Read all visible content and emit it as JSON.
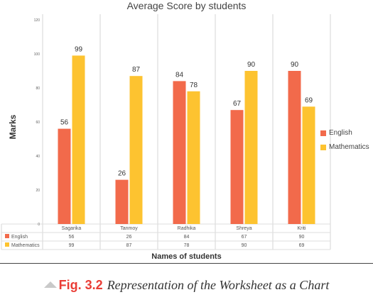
{
  "colors": {
    "english": "#f26a4b",
    "mathematics": "#fdc330",
    "grid": "#d5d5d5",
    "table_line": "#dddddd",
    "text": "#333333"
  },
  "table": {
    "rows": [
      {
        "label": "English",
        "values": [
          "56",
          "26",
          "84",
          "67",
          "90"
        ]
      },
      {
        "label": "Mathematics",
        "values": [
          "99",
          "87",
          "78",
          "90",
          "69"
        ]
      }
    ]
  },
  "caption": {
    "figure_label": "Fig. 3.2",
    "text": "Representation of the Worksheet as a Chart",
    "icon": "triangle-icon"
  },
  "chart_data": {
    "type": "bar",
    "title": "Average Score by students",
    "xlabel": "Names of students",
    "ylabel": "Marks",
    "categories": [
      "Sagarika",
      "Tanmoy",
      "Radhika",
      "Shreya",
      "Kriti"
    ],
    "series": [
      {
        "name": "English",
        "values": [
          56,
          26,
          84,
          67,
          90
        ]
      },
      {
        "name": "Mathematics",
        "values": [
          99,
          87,
          78,
          90,
          69
        ]
      }
    ],
    "yticks": [
      "0",
      "20",
      "40",
      "60",
      "80",
      "100",
      "120"
    ],
    "ylim": [
      0,
      120
    ],
    "grid": "vertical category separators",
    "legend_position": "right",
    "data_labels": true,
    "data_table": true
  }
}
